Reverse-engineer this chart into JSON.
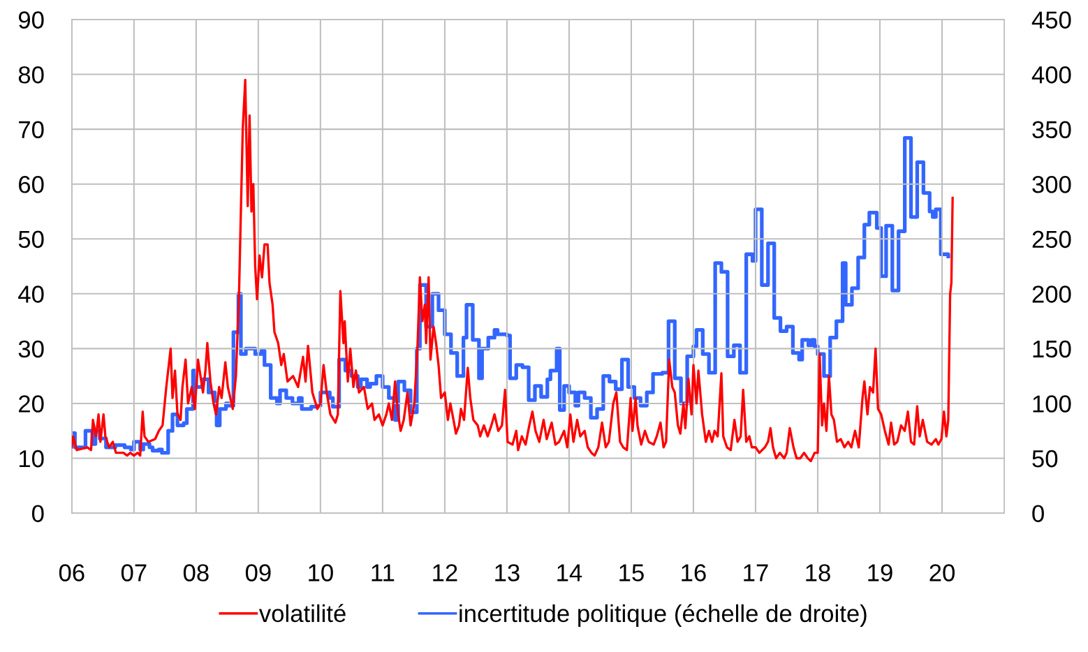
{
  "chart_data": {
    "type": "line",
    "xlim": [
      2006,
      2021
    ],
    "xticks": [
      {
        "value": 2006,
        "label": "06"
      },
      {
        "value": 2007,
        "label": "07"
      },
      {
        "value": 2008,
        "label": "08"
      },
      {
        "value": 2009,
        "label": "09"
      },
      {
        "value": 2010,
        "label": "10"
      },
      {
        "value": 2011,
        "label": "11"
      },
      {
        "value": 2012,
        "label": "12"
      },
      {
        "value": 2013,
        "label": "13"
      },
      {
        "value": 2014,
        "label": "14"
      },
      {
        "value": 2015,
        "label": "15"
      },
      {
        "value": 2016,
        "label": "16"
      },
      {
        "value": 2017,
        "label": "17"
      },
      {
        "value": 2018,
        "label": "18"
      },
      {
        "value": 2019,
        "label": "19"
      },
      {
        "value": 2020,
        "label": "20"
      }
    ],
    "ylim": [
      0,
      90
    ],
    "yticks": [
      0,
      10,
      20,
      30,
      40,
      50,
      60,
      70,
      80,
      90
    ],
    "y2lim": [
      0,
      450
    ],
    "y2ticks": [
      0,
      50,
      100,
      150,
      200,
      250,
      300,
      350,
      400,
      450
    ],
    "grid": true,
    "legend": "bottom",
    "marker": "none",
    "line_style": "solid",
    "series": [
      {
        "name": "volatilité",
        "color": "#ff0000",
        "x": [
          2006.0,
          2006.02,
          2006.08,
          2006.25,
          2006.31,
          2006.34,
          2006.39,
          2006.43,
          2006.46,
          2006.51,
          2006.54,
          2006.6,
          2006.66,
          2006.71,
          2006.83,
          2006.89,
          2006.94,
          2007.0,
          2007.06,
          2007.1,
          2007.14,
          2007.17,
          2007.23,
          2007.34,
          2007.4,
          2007.46,
          2007.52,
          2007.59,
          2007.62,
          2007.66,
          2007.7,
          2007.75,
          2007.78,
          2007.83,
          2007.87,
          2007.93,
          2007.98,
          2008.03,
          2008.07,
          2008.11,
          2008.15,
          2008.18,
          2008.23,
          2008.28,
          2008.32,
          2008.37,
          2008.41,
          2008.47,
          2008.51,
          2008.59,
          2008.64,
          2008.69,
          2008.75,
          2008.79,
          2008.83,
          2008.86,
          2008.89,
          2008.92,
          2008.95,
          2008.98,
          2009.02,
          2009.06,
          2009.1,
          2009.15,
          2009.18,
          2009.23,
          2009.26,
          2009.32,
          2009.37,
          2009.41,
          2009.47,
          2009.56,
          2009.64,
          2009.72,
          2009.76,
          2009.8,
          2009.87,
          2009.95,
          2010.0,
          2010.05,
          2010.1,
          2010.16,
          2010.24,
          2010.28,
          2010.32,
          2010.37,
          2010.39,
          2010.44,
          2010.48,
          2010.53,
          2010.57,
          2010.62,
          2010.7,
          2010.76,
          2010.83,
          2010.87,
          2010.94,
          2011.0,
          2011.06,
          2011.1,
          2011.15,
          2011.2,
          2011.25,
          2011.29,
          2011.34,
          2011.4,
          2011.45,
          2011.51,
          2011.56,
          2011.6,
          2011.64,
          2011.68,
          2011.7,
          2011.74,
          2011.77,
          2011.82,
          2011.86,
          2011.9,
          2011.94,
          2012.0,
          2012.05,
          2012.09,
          2012.14,
          2012.18,
          2012.23,
          2012.26,
          2012.31,
          2012.37,
          2012.41,
          2012.46,
          2012.53,
          2012.57,
          2012.63,
          2012.69,
          2012.75,
          2012.8,
          2012.86,
          2012.92,
          2012.97,
          2013.01,
          2013.09,
          2013.15,
          2013.18,
          2013.24,
          2013.3,
          2013.36,
          2013.41,
          2013.46,
          2013.52,
          2013.59,
          2013.64,
          2013.72,
          2013.78,
          2013.84,
          2013.92,
          2013.97,
          2014.02,
          2014.07,
          2014.13,
          2014.18,
          2014.25,
          2014.3,
          2014.36,
          2014.41,
          2014.47,
          2014.53,
          2014.59,
          2014.64,
          2014.71,
          2014.76,
          2014.82,
          2014.87,
          2014.93,
          2014.99,
          2015.02,
          2015.07,
          2015.1,
          2015.16,
          2015.22,
          2015.28,
          2015.36,
          2015.41,
          2015.47,
          2015.52,
          2015.56,
          2015.61,
          2015.66,
          2015.7,
          2015.75,
          2015.79,
          2015.84,
          2015.87,
          2015.92,
          2015.97,
          2016.0,
          2016.05,
          2016.08,
          2016.14,
          2016.2,
          2016.25,
          2016.3,
          2016.34,
          2016.39,
          2016.45,
          2016.48,
          2016.54,
          2016.6,
          2016.66,
          2016.71,
          2016.76,
          2016.8,
          2016.85,
          2016.9,
          2016.94,
          2017.0,
          2017.06,
          2017.15,
          2017.2,
          2017.24,
          2017.28,
          2017.33,
          2017.39,
          2017.46,
          2017.5,
          2017.55,
          2017.61,
          2017.66,
          2017.72,
          2017.78,
          2017.84,
          2017.89,
          2017.95,
          2018.0,
          2018.03,
          2018.07,
          2018.1,
          2018.14,
          2018.18,
          2018.22,
          2018.26,
          2018.31,
          2018.37,
          2018.43,
          2018.49,
          2018.54,
          2018.6,
          2018.66,
          2018.72,
          2018.75,
          2018.8,
          2018.84,
          2018.89,
          2018.93,
          2018.97,
          2019.02,
          2019.08,
          2019.14,
          2019.18,
          2019.23,
          2019.28,
          2019.34,
          2019.4,
          2019.45,
          2019.5,
          2019.55,
          2019.6,
          2019.64,
          2019.69,
          2019.76,
          2019.83,
          2019.9,
          2019.94,
          2019.99,
          2020.03,
          2020.07,
          2020.1,
          2020.13,
          2020.15,
          2020.17
        ],
        "values": [
          12,
          14,
          11.5,
          12,
          11.5,
          17,
          14,
          18,
          13,
          18,
          14,
          12,
          13,
          11,
          11,
          10.5,
          11,
          10.5,
          11,
          10.5,
          18.5,
          14,
          13,
          13.5,
          15,
          16,
          23,
          30,
          21,
          26,
          18,
          17,
          23,
          28,
          20,
          23,
          19,
          28,
          25,
          22,
          26,
          31,
          24,
          20,
          18,
          23,
          21,
          27.5,
          23,
          19,
          25,
          40,
          70,
          79,
          56,
          72.5,
          55,
          60,
          45,
          39,
          47,
          43,
          49,
          49,
          42,
          38,
          33,
          31,
          27,
          29,
          24,
          25,
          23,
          28.5,
          24,
          30.5,
          22,
          19,
          20,
          27,
          22,
          18,
          16.5,
          18,
          40.5,
          31,
          35,
          24,
          30,
          23,
          26,
          22,
          23,
          19,
          20,
          17,
          18,
          16,
          18,
          20,
          17,
          24,
          18,
          15,
          17,
          22,
          16,
          20,
          30,
          43,
          35,
          38,
          31,
          43,
          28,
          34,
          31,
          27,
          21,
          22,
          17,
          20,
          17,
          14.5,
          16,
          19,
          17,
          26.5,
          21,
          17,
          16,
          14,
          16,
          14,
          16,
          18,
          15,
          16,
          22.5,
          13,
          12.5,
          15,
          11.5,
          14,
          12.5,
          16,
          18.5,
          15,
          13,
          17,
          13.5,
          16.5,
          12.5,
          13,
          15,
          12,
          18,
          13,
          17,
          14,
          15,
          12,
          11,
          10.5,
          12,
          16.5,
          12,
          13,
          20,
          22,
          13,
          12,
          11.5,
          21,
          15,
          21,
          16,
          12.5,
          15,
          13,
          12.5,
          14,
          16.5,
          12,
          13,
          28,
          23,
          22,
          16,
          14.5,
          20,
          15.5,
          24.5,
          18,
          27,
          20,
          26,
          18,
          13,
          15,
          13,
          15,
          14,
          25.5,
          14,
          12,
          11.5,
          17,
          13,
          14,
          22.5,
          13,
          14,
          12,
          12,
          11,
          12,
          13,
          15.5,
          12,
          10,
          11,
          10,
          11,
          15.5,
          12,
          10,
          10,
          11,
          10,
          9.5,
          11,
          11,
          29,
          16,
          20,
          15,
          25,
          18,
          17,
          13,
          13.5,
          12,
          13,
          12,
          15,
          12,
          21,
          24,
          18,
          23,
          22,
          30,
          19,
          18,
          15,
          12.5,
          16.5,
          12.5,
          13,
          16,
          15,
          18.5,
          13,
          12.5,
          19.5,
          14,
          17,
          13,
          12.5,
          13.5,
          12.5,
          13.5,
          18.5,
          14,
          17,
          40,
          42,
          57.5
        ]
      },
      {
        "name": "incertitude politique (échelle de droite)",
        "color": "#3366ff",
        "axis": "y2",
        "type": "step",
        "x": [
          2006.0,
          2006.05,
          2006.2,
          2006.22,
          2006.3,
          2006.33,
          2006.38,
          2006.45,
          2006.55,
          2006.7,
          2006.85,
          2006.95,
          2007.0,
          2007.1,
          2007.15,
          2007.25,
          2007.3,
          2007.4,
          2007.45,
          2007.55,
          2007.62,
          2007.7,
          2007.8,
          2007.85,
          2007.95,
          2008.0,
          2008.1,
          2008.2,
          2008.3,
          2008.33,
          2008.38,
          2008.48,
          2008.52,
          2008.6,
          2008.68,
          2008.72,
          2008.8,
          2008.95,
          2009.05,
          2009.1,
          2009.2,
          2009.3,
          2009.35,
          2009.45,
          2009.55,
          2009.65,
          2009.7,
          2009.85,
          2009.95,
          2010.0,
          2010.15,
          2010.2,
          2010.3,
          2010.4,
          2010.5,
          2010.6,
          2010.65,
          2010.75,
          2010.8,
          2010.9,
          2011.0,
          2011.1,
          2011.2,
          2011.25,
          2011.35,
          2011.45,
          2011.55,
          2011.6,
          2011.7,
          2011.8,
          2011.9,
          2012.0,
          2012.1,
          2012.2,
          2012.3,
          2012.35,
          2012.45,
          2012.55,
          2012.6,
          2012.7,
          2012.8,
          2012.85,
          2013.0,
          2013.05,
          2013.15,
          2013.25,
          2013.35,
          2013.45,
          2013.55,
          2013.65,
          2013.7,
          2013.8,
          2013.85,
          2013.92,
          2014.0,
          2014.1,
          2014.15,
          2014.25,
          2014.35,
          2014.45,
          2014.55,
          2014.65,
          2014.75,
          2014.85,
          2014.95,
          2015.05,
          2015.15,
          2015.25,
          2015.35,
          2015.5,
          2015.6,
          2015.7,
          2015.8,
          2015.9,
          2016.0,
          2016.05,
          2016.15,
          2016.25,
          2016.35,
          2016.45,
          2016.55,
          2016.65,
          2016.75,
          2016.85,
          2016.95,
          2017.0,
          2017.1,
          2017.2,
          2017.3,
          2017.4,
          2017.5,
          2017.6,
          2017.7,
          2017.75,
          2017.85,
          2017.9,
          2017.95,
          2018.0,
          2018.1,
          2018.2,
          2018.3,
          2018.4,
          2018.45,
          2018.55,
          2018.65,
          2018.75,
          2018.83,
          2018.95,
          2019.02,
          2019.1,
          2019.2,
          2019.3,
          2019.4,
          2019.5,
          2019.6,
          2019.7,
          2019.8,
          2019.85,
          2019.9,
          2019.98,
          2020.1
        ],
        "values": [
          73,
          60,
          60,
          75,
          75,
          63,
          75,
          68,
          60,
          62,
          60,
          58,
          65,
          58,
          63,
          60,
          57,
          58,
          55,
          75,
          90,
          80,
          82,
          95,
          130,
          115,
          122,
          110,
          100,
          80,
          95,
          100,
          98,
          165,
          200,
          145,
          150,
          145,
          148,
          135,
          105,
          100,
          112,
          105,
          100,
          105,
          95,
          97,
          98,
          110,
          105,
          97,
          140,
          130,
          125,
          115,
          122,
          115,
          118,
          125,
          115,
          105,
          85,
          120,
          112,
          92,
          150,
          208,
          170,
          200,
          185,
          163,
          146,
          125,
          160,
          190,
          158,
          123,
          150,
          160,
          167,
          163,
          162,
          123,
          135,
          133,
          103,
          116,
          106,
          122,
          130,
          150,
          94,
          116,
          110,
          98,
          110,
          105,
          87,
          95,
          125,
          120,
          113,
          140,
          115,
          105,
          98,
          110,
          127,
          128,
          175,
          123,
          100,
          143,
          152,
          167,
          145,
          128,
          228,
          220,
          143,
          153,
          128,
          236,
          230,
          277,
          208,
          246,
          178,
          166,
          170,
          146,
          140,
          158,
          153,
          158,
          152,
          145,
          125,
          160,
          175,
          228,
          190,
          205,
          233,
          263,
          274,
          260,
          216,
          262,
          203,
          257,
          342,
          270,
          320,
          292,
          275,
          270,
          277,
          236,
          234
        ]
      }
    ]
  }
}
